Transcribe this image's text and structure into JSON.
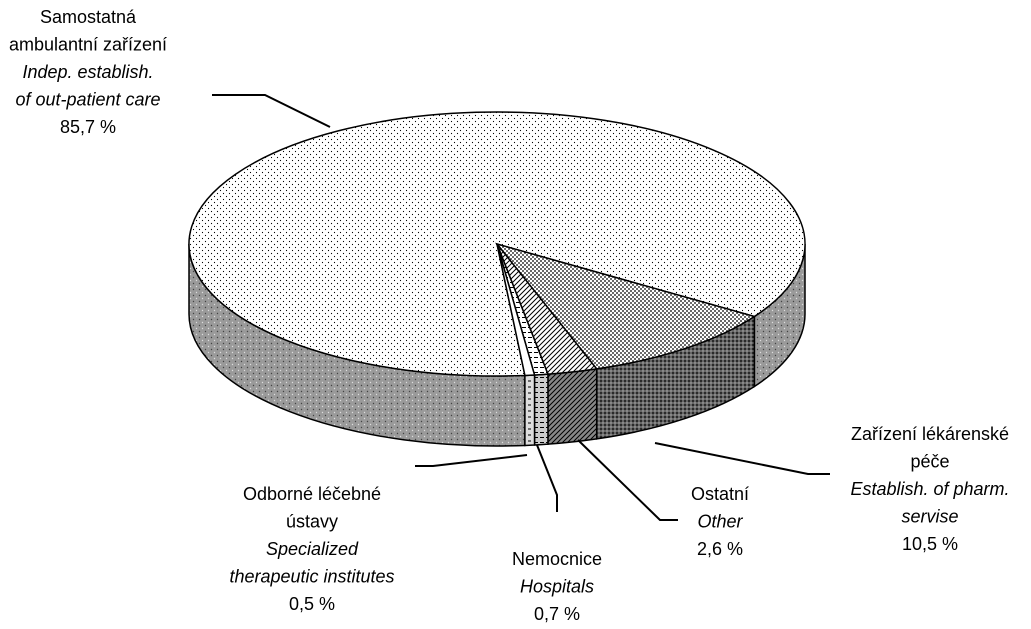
{
  "chart_data": {
    "type": "pie3d",
    "categories": [
      [
        "Samostatná",
        "ambulantní zařízení"
      ],
      [
        "Zařízení lékárenské",
        "péče"
      ],
      [
        "Ostatní"
      ],
      [
        "Nemocnice"
      ],
      [
        "Odborné léčebné",
        "ústavy"
      ]
    ],
    "categories_en": [
      [
        "Indep. establish.",
        "of out-patient care"
      ],
      [
        "Establish. of pharm.",
        "servise"
      ],
      [
        "Other"
      ],
      [
        "Hospitals"
      ],
      [
        "Specialized",
        "therapeutic institutes"
      ]
    ],
    "values": [
      85.7,
      10.5,
      2.6,
      0.7,
      0.5
    ],
    "value_labels": [
      "85,7 %",
      "10,5 %",
      "2,6 %",
      "0,7 %",
      "0,5 %"
    ]
  }
}
